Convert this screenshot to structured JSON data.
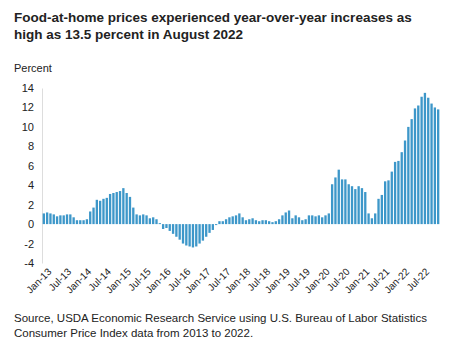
{
  "chart_data": {
    "type": "bar",
    "title": "Food-at-home prices experienced year-over-year increases as high as 13.5 percent in August 2022",
    "ylabel": "Percent",
    "source": "Source, USDA Economic Research Service using U.S. Bureau of Labor Statistics Consumer Price Index data from 2013 to 2022.",
    "color": "#3d97c9",
    "ylim": [
      -4,
      14
    ],
    "yticks": [
      -4,
      -2,
      0,
      2,
      4,
      6,
      8,
      10,
      12,
      14
    ],
    "categories": [
      "Jan-13",
      null,
      null,
      null,
      null,
      null,
      "Jul-13",
      null,
      null,
      null,
      null,
      null,
      "Jan-14",
      null,
      null,
      null,
      null,
      null,
      "Jul-14",
      null,
      null,
      null,
      null,
      null,
      "Jan-15",
      null,
      null,
      null,
      null,
      null,
      "Jul-15",
      null,
      null,
      null,
      null,
      null,
      "Jan-16",
      null,
      null,
      null,
      null,
      null,
      "Jul-16",
      null,
      null,
      null,
      null,
      null,
      "Jan-17",
      null,
      null,
      null,
      null,
      null,
      "Jul-17",
      null,
      null,
      null,
      null,
      null,
      "Jan-18",
      null,
      null,
      null,
      null,
      null,
      "Jul-18",
      null,
      null,
      null,
      null,
      null,
      "Jan-19",
      null,
      null,
      null,
      null,
      null,
      "Jul-19",
      null,
      null,
      null,
      null,
      null,
      "Jan-20",
      null,
      null,
      null,
      null,
      null,
      "Jul-20",
      null,
      null,
      null,
      null,
      null,
      "Jan-21",
      null,
      null,
      null,
      null,
      null,
      "Jul-21",
      null,
      null,
      null,
      null,
      null,
      "Jan-22",
      null,
      null,
      null,
      null,
      null,
      "Jul-22",
      null,
      null,
      null,
      null,
      null
    ],
    "values": [
      1.1,
      1.2,
      1.1,
      1.0,
      0.8,
      0.9,
      0.9,
      1.0,
      1.0,
      0.7,
      0.4,
      0.4,
      0.4,
      0.5,
      1.3,
      1.7,
      2.5,
      2.4,
      2.6,
      2.7,
      3.1,
      3.2,
      3.3,
      3.4,
      3.7,
      3.2,
      2.8,
      1.7,
      1.0,
      0.9,
      1.0,
      0.9,
      0.6,
      0.7,
      0.5,
      0.1,
      -0.5,
      -0.4,
      -0.7,
      -1.0,
      -1.3,
      -1.6,
      -2.0,
      -2.2,
      -2.3,
      -2.4,
      -2.3,
      -2.0,
      -1.7,
      -1.3,
      -0.9,
      -0.6,
      -0.1,
      0.3,
      0.3,
      0.5,
      0.7,
      0.8,
      0.9,
      1.1,
      0.7,
      0.4,
      0.5,
      0.6,
      0.4,
      0.3,
      0.4,
      0.4,
      0.3,
      0.2,
      0.3,
      0.5,
      0.9,
      1.2,
      1.4,
      0.6,
      0.9,
      0.7,
      0.4,
      0.5,
      0.9,
      0.9,
      0.8,
      0.9,
      0.7,
      0.9,
      1.1,
      4.1,
      4.8,
      5.6,
      4.6,
      4.6,
      4.1,
      3.9,
      3.6,
      3.9,
      3.7,
      3.3,
      1.1,
      0.6,
      1.1,
      2.6,
      3.0,
      4.4,
      4.5,
      5.4,
      6.4,
      6.5,
      7.4,
      8.6,
      10.0,
      10.8,
      11.9,
      12.2,
      13.1,
      13.5,
      13.0,
      12.4,
      12.0,
      11.8
    ]
  }
}
